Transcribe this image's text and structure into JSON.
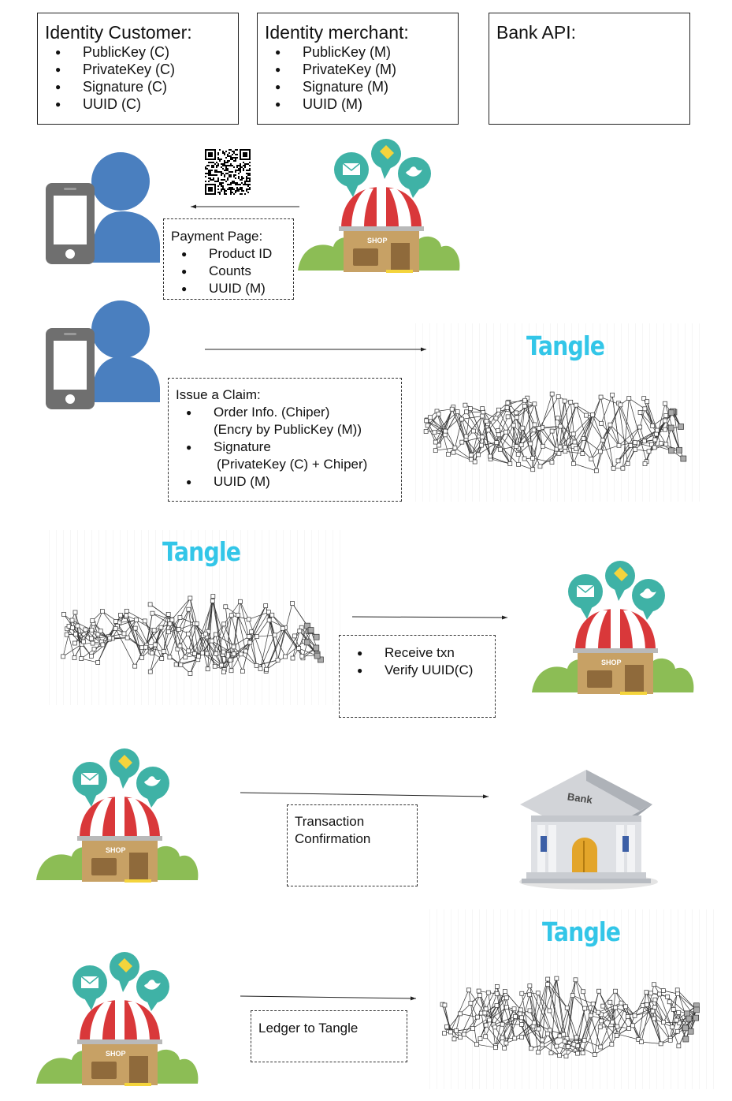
{
  "identity_customer": {
    "title": "Identity Customer:",
    "items": [
      "PublicKey (C)",
      "PrivateKey (C)",
      "Signature (C)",
      "UUID (C)"
    ]
  },
  "identity_merchant": {
    "title": "Identity merchant:",
    "items": [
      "PublicKey (M)",
      "PrivateKey (M)",
      "Signature (M)",
      "UUID (M)"
    ]
  },
  "bank_api": {
    "title": "Bank API:"
  },
  "payment_page": {
    "title": "Payment Page:",
    "items": [
      "Product ID",
      "Counts",
      "UUID (M)"
    ]
  },
  "issue_claim": {
    "title": "Issue a Claim:",
    "items": [
      {
        "text": "Order Info. (Chiper)",
        "sub": "(Encry by PublicKey (M))"
      },
      {
        "text": "Signature",
        "sub": "(PrivateKey (C) + Chiper)"
      },
      {
        "text": "UUID (M)",
        "sub": ""
      }
    ]
  },
  "receive_box": {
    "items": [
      "Receive txn",
      "Verify UUID(C)"
    ]
  },
  "transaction_box": {
    "line1": "Transaction",
    "line2": "Confirmation"
  },
  "ledger_box": {
    "text": "Ledger to Tangle"
  },
  "tangle_word": "Tangle",
  "shop_sign": "SHOP",
  "bank_sign": "Bank",
  "colors": {
    "person": "#4a7fbf",
    "phone": "#6f6f6f",
    "tangle": "#33c6e8",
    "awning_red": "#d9383a",
    "shop_wall": "#c7a165",
    "bubble_teal": "#3fb2a6",
    "bush": "#8cbd55"
  }
}
